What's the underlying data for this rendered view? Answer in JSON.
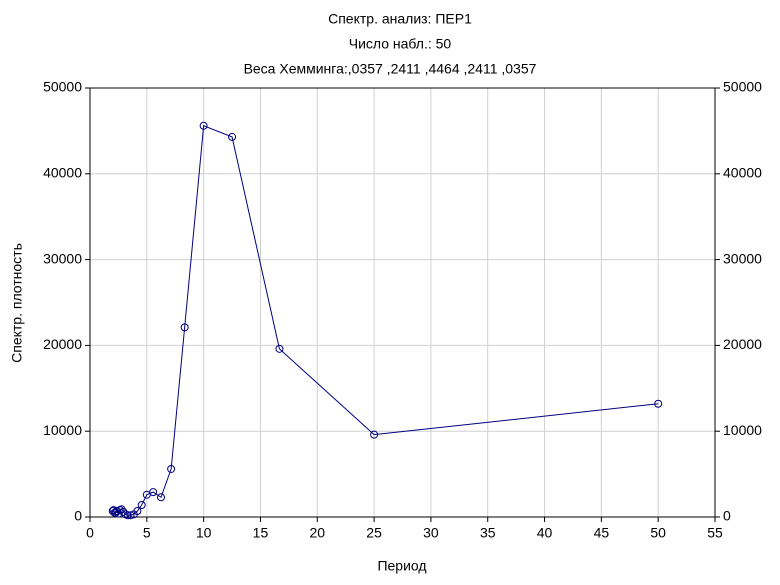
{
  "chart_data": {
    "type": "line",
    "title": "Спектр. анализ: ПЕР1",
    "subtitle": "Число набл.: 50",
    "annotation": "Веса Хемминга:,0357 ,2411 ,4464 ,2411 ,0357",
    "x_label": "Период",
    "y_label": "Спектр. плотность",
    "x": [
      2.0,
      2.08,
      2.17,
      2.27,
      2.38,
      2.5,
      2.63,
      2.78,
      2.94,
      3.13,
      3.33,
      3.57,
      3.85,
      4.17,
      4.55,
      5.0,
      5.56,
      6.25,
      7.14,
      8.33,
      10.0,
      12.5,
      16.67,
      25.0,
      50.0
    ],
    "series": [
      {
        "name": "Спектр. плотность",
        "color": "#000080",
        "values": [
          700,
          800,
          500,
          500,
          700,
          400,
          800,
          900,
          600,
          300,
          200,
          200,
          300,
          700,
          1400,
          2600,
          2900,
          2300,
          5600,
          22100,
          45600,
          44300,
          19600,
          9600,
          13200
        ]
      }
    ],
    "xlim": [
      0,
      55
    ],
    "xticks": [
      0,
      5,
      10,
      15,
      20,
      25,
      30,
      35,
      40,
      45,
      50,
      55
    ],
    "ylim": [
      0,
      50000
    ],
    "yticks": [
      0,
      10000,
      20000,
      30000,
      40000,
      50000
    ],
    "y2lim": [
      0,
      50000
    ],
    "y2ticks": [
      0,
      10000,
      20000,
      30000,
      40000,
      50000
    ],
    "grid": true
  }
}
